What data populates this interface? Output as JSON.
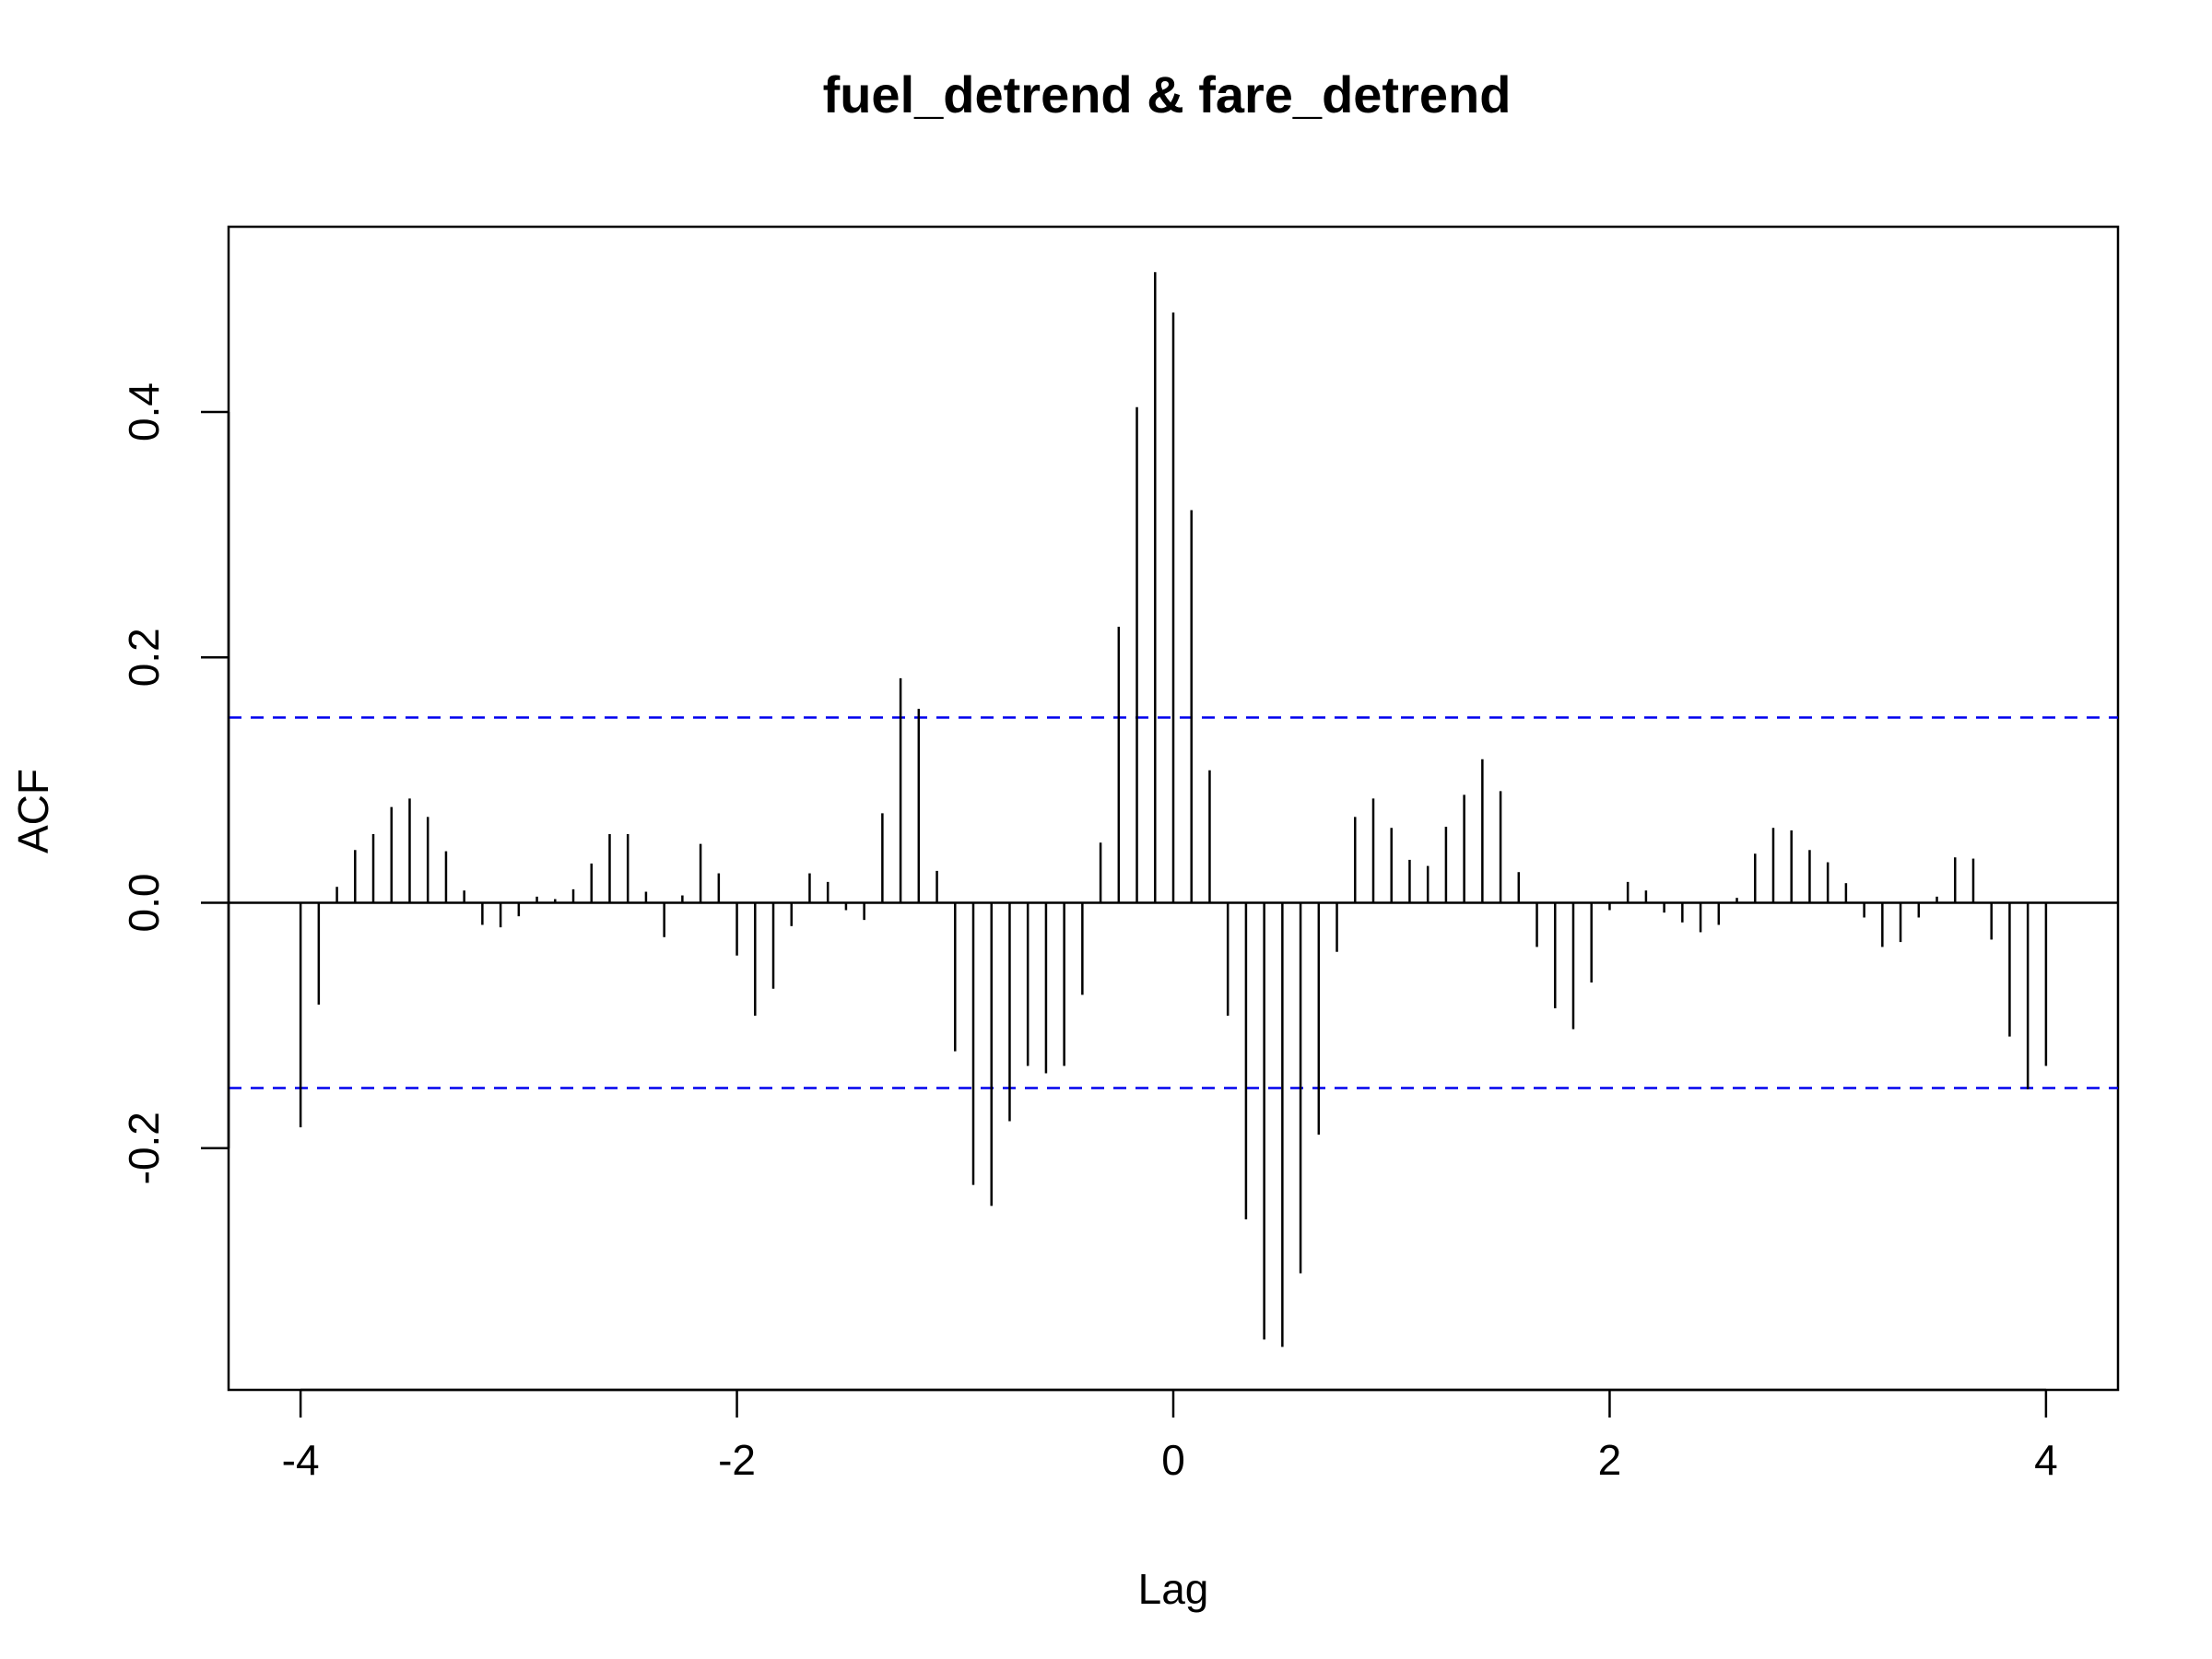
{
  "chart_data": {
    "type": "bar",
    "title": "fuel_detrend & fare_detrend",
    "xlabel": "Lag",
    "ylabel": "ACF",
    "xlim": [
      -4.33,
      4.33
    ],
    "ylim": [
      -0.397,
      0.551
    ],
    "xticks": [
      -4,
      -2,
      0,
      2,
      4
    ],
    "xtick_labels": [
      "-4",
      "-2",
      "0",
      "2",
      "4"
    ],
    "yticks": [
      -0.2,
      0.0,
      0.2,
      0.4
    ],
    "ytick_labels": [
      "-0.2",
      "0.0",
      "0.2",
      "0.4"
    ],
    "zero_line": 0,
    "confidence_bounds": [
      0.151,
      -0.151
    ],
    "confidence_color": "#0000ee",
    "bar_color": "#000000",
    "grid": false,
    "legend": "none",
    "lags": [
      -4.0,
      -3.9167,
      -3.8333,
      -3.75,
      -3.6667,
      -3.5833,
      -3.5,
      -3.4167,
      -3.3333,
      -3.25,
      -3.1667,
      -3.0833,
      -3.0,
      -2.9167,
      -2.8333,
      -2.75,
      -2.6667,
      -2.5833,
      -2.5,
      -2.4167,
      -2.3333,
      -2.25,
      -2.1667,
      -2.0833,
      -2.0,
      -1.9167,
      -1.8333,
      -1.75,
      -1.6667,
      -1.5833,
      -1.5,
      -1.4167,
      -1.3333,
      -1.25,
      -1.1667,
      -1.0833,
      -1.0,
      -0.9167,
      -0.8333,
      -0.75,
      -0.6667,
      -0.5833,
      -0.5,
      -0.4167,
      -0.3333,
      -0.25,
      -0.1667,
      -0.0833,
      0.0,
      0.0833,
      0.1667,
      0.25,
      0.3333,
      0.4167,
      0.5,
      0.5833,
      0.6667,
      0.75,
      0.8333,
      0.9167,
      1.0,
      1.0833,
      1.1667,
      1.25,
      1.3333,
      1.4167,
      1.5,
      1.5833,
      1.6667,
      1.75,
      1.8333,
      1.9167,
      2.0,
      2.0833,
      2.1667,
      2.25,
      2.3333,
      2.4167,
      2.5,
      2.5833,
      2.6667,
      2.75,
      2.8333,
      2.9167,
      3.0,
      3.0833,
      3.1667,
      3.25,
      3.3333,
      3.4167,
      3.5,
      3.5833,
      3.6667,
      3.75,
      3.8333,
      3.9167,
      4.0
    ],
    "values": [
      -0.183,
      -0.083,
      0.013,
      0.043,
      0.056,
      0.078,
      0.085,
      0.07,
      0.042,
      0.01,
      -0.018,
      -0.02,
      -0.011,
      0.005,
      0.003,
      0.011,
      0.032,
      0.056,
      0.056,
      0.009,
      -0.028,
      0.006,
      0.048,
      0.024,
      -0.043,
      -0.092,
      -0.07,
      -0.019,
      0.024,
      0.017,
      -0.006,
      -0.014,
      0.073,
      0.183,
      0.158,
      0.026,
      -0.121,
      -0.23,
      -0.247,
      -0.178,
      -0.133,
      -0.139,
      -0.133,
      -0.075,
      0.049,
      0.225,
      0.404,
      0.514,
      0.481,
      0.32,
      0.108,
      -0.092,
      -0.258,
      -0.356,
      -0.362,
      -0.302,
      -0.189,
      -0.04,
      0.07,
      0.085,
      0.061,
      0.035,
      0.03,
      0.062,
      0.088,
      0.117,
      0.091,
      0.025,
      -0.036,
      -0.086,
      -0.103,
      -0.065,
      -0.006,
      0.017,
      0.01,
      -0.008,
      -0.016,
      -0.024,
      -0.018,
      0.004,
      0.04,
      0.061,
      0.059,
      0.043,
      0.033,
      0.016,
      -0.012,
      -0.036,
      -0.032,
      -0.012,
      0.005,
      0.037,
      0.036,
      -0.03,
      -0.109,
      -0.152,
      -0.133
    ]
  }
}
